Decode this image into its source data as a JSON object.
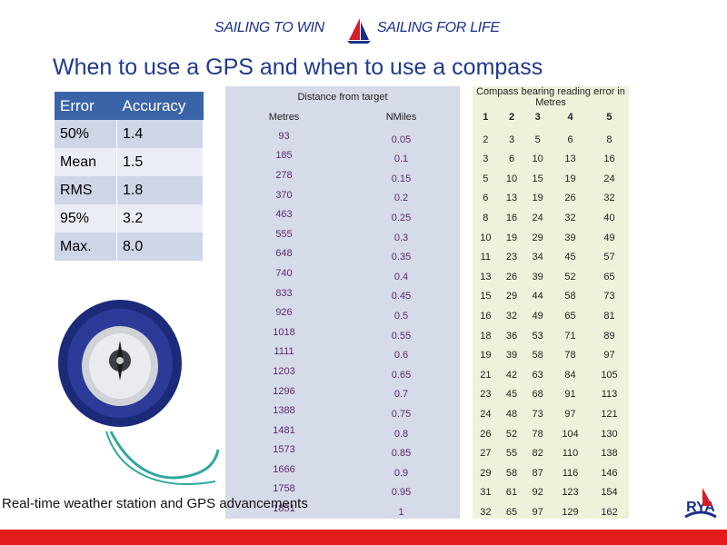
{
  "banner": {
    "left": "SAILING TO WIN",
    "right": "SAILING FOR LIFE"
  },
  "title": "When to use a GPS and when to use a compass",
  "error_table": {
    "headers": [
      "Error",
      "Accuracy"
    ],
    "rows": [
      [
        "50%",
        "1.4"
      ],
      [
        "Mean",
        "1.5"
      ],
      [
        "RMS",
        "1.8"
      ],
      [
        "95%",
        "3.2"
      ],
      [
        "Max.",
        "8.0"
      ]
    ]
  },
  "bearing_table": {
    "distance_header": "Distance from target",
    "bearing_header": "Compass bearing reading error in Metres",
    "unit_headers": [
      "Metres",
      "NMiles"
    ],
    "bearing_columns": [
      "1",
      "2",
      "3",
      "4",
      "5"
    ],
    "rows": [
      [
        "93",
        "0.05",
        "2",
        "3",
        "5",
        "6",
        "8"
      ],
      [
        "185",
        "0.1",
        "3",
        "6",
        "10",
        "13",
        "16"
      ],
      [
        "278",
        "0.15",
        "5",
        "10",
        "15",
        "19",
        "24"
      ],
      [
        "370",
        "0.2",
        "6",
        "13",
        "19",
        "26",
        "32"
      ],
      [
        "463",
        "0.25",
        "8",
        "16",
        "24",
        "32",
        "40"
      ],
      [
        "555",
        "0.3",
        "10",
        "19",
        "29",
        "39",
        "49"
      ],
      [
        "648",
        "0.35",
        "11",
        "23",
        "34",
        "45",
        "57"
      ],
      [
        "740",
        "0.4",
        "13",
        "26",
        "39",
        "52",
        "65"
      ],
      [
        "833",
        "0.45",
        "15",
        "29",
        "44",
        "58",
        "73"
      ],
      [
        "926",
        "0.5",
        "16",
        "32",
        "49",
        "65",
        "81"
      ],
      [
        "1018",
        "0.55",
        "18",
        "36",
        "53",
        "71",
        "89"
      ],
      [
        "1111",
        "0.6",
        "19",
        "39",
        "58",
        "78",
        "97"
      ],
      [
        "1203",
        "0.65",
        "21",
        "42",
        "63",
        "84",
        "105"
      ],
      [
        "1296",
        "0.7",
        "23",
        "45",
        "68",
        "91",
        "113"
      ],
      [
        "1388",
        "0.75",
        "24",
        "48",
        "73",
        "97",
        "121"
      ],
      [
        "1481",
        "0.8",
        "26",
        "52",
        "78",
        "104",
        "130"
      ],
      [
        "1573",
        "0.85",
        "27",
        "55",
        "82",
        "110",
        "138"
      ],
      [
        "1666",
        "0.9",
        "29",
        "58",
        "87",
        "116",
        "146"
      ],
      [
        "1758",
        "0.95",
        "31",
        "61",
        "92",
        "123",
        "154"
      ],
      [
        "1851",
        "1",
        "32",
        "65",
        "97",
        "129",
        "162"
      ]
    ]
  },
  "caption": "Real-time weather station and GPS advancements",
  "colors": {
    "header_blue": "#3b64a8",
    "accent_red": "#e41b1b",
    "title_blue": "#1f3a8c"
  },
  "logo_text": "RYA"
}
